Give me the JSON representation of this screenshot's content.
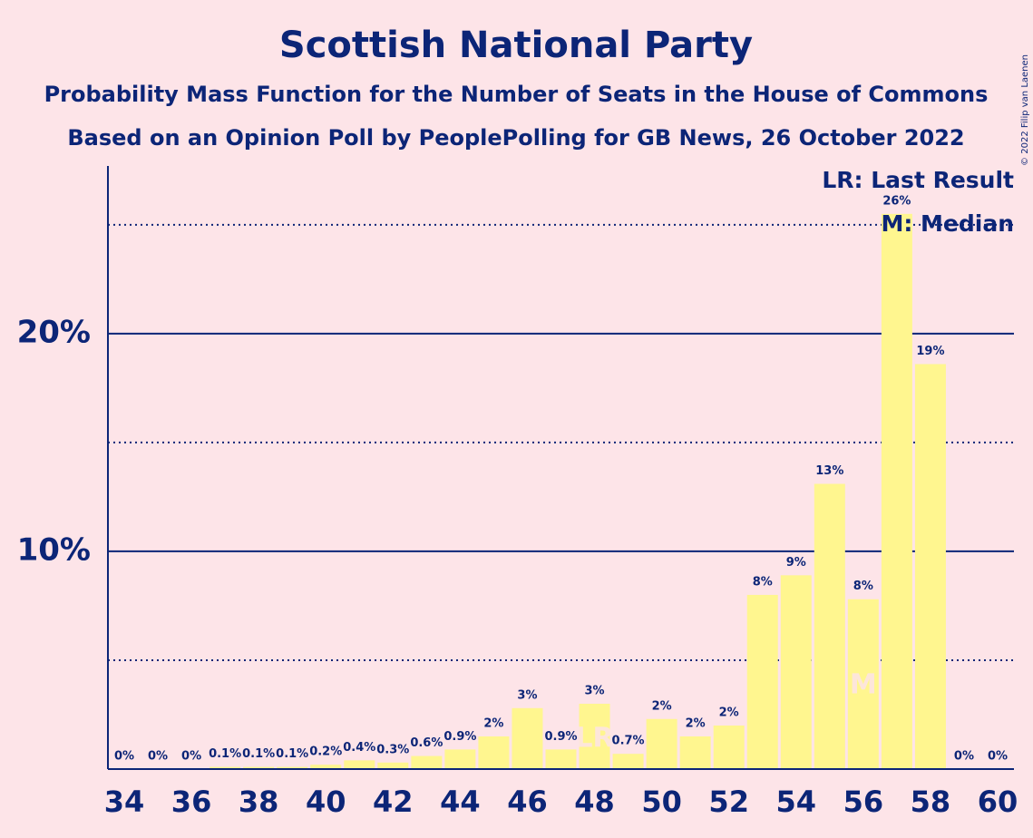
{
  "chart_data": {
    "type": "bar",
    "title": "Scottish National Party",
    "subtitle": "Probability Mass Function for the Number of Seats in the House of Commons",
    "subtitle2": "Based on an Opinion Poll by PeoplePolling for GB News, 26 October 2022",
    "copyright": "© 2022 Filip van Laenen",
    "legend": [
      "LR: Last Result",
      "M: Median"
    ],
    "categories": [
      "34",
      null,
      "36",
      null,
      "38",
      null,
      "40",
      null,
      "42",
      null,
      "44",
      null,
      "46",
      null,
      "48",
      null,
      "50",
      null,
      "52",
      null,
      "54",
      null,
      "56",
      null,
      "58",
      null,
      "60"
    ],
    "values": [
      0,
      0,
      0,
      0.1,
      0.1,
      0.1,
      0.2,
      0.4,
      0.3,
      0.6,
      0.9,
      1.5,
      2.8,
      0.9,
      3.0,
      0.7,
      2.3,
      1.5,
      2.0,
      8.0,
      8.9,
      13.1,
      7.8,
      25.5,
      18.6,
      0,
      0
    ],
    "value_labels": [
      "0%",
      "0%",
      "0%",
      "0.1%",
      "0.1%",
      "0.1%",
      "0.2%",
      "0.4%",
      "0.3%",
      "0.6%",
      "0.9%",
      "2%",
      "3%",
      "0.9%",
      "3%",
      "0.7%",
      "2%",
      "2%",
      "2%",
      "8%",
      "9%",
      "13%",
      "8%",
      "26%",
      "19%",
      "0%",
      "0%"
    ],
    "markers": [
      {
        "text": "LR",
        "index": 14
      },
      {
        "text": "M",
        "index": 22
      }
    ],
    "color": "#fff68f",
    "ylim": [
      0,
      27.7
    ],
    "yticks": [
      {
        "value": 10,
        "label": "10%"
      },
      {
        "value": 20,
        "label": "20%"
      }
    ],
    "minor_yticks": [
      5,
      15,
      25
    ],
    "grid": true
  }
}
